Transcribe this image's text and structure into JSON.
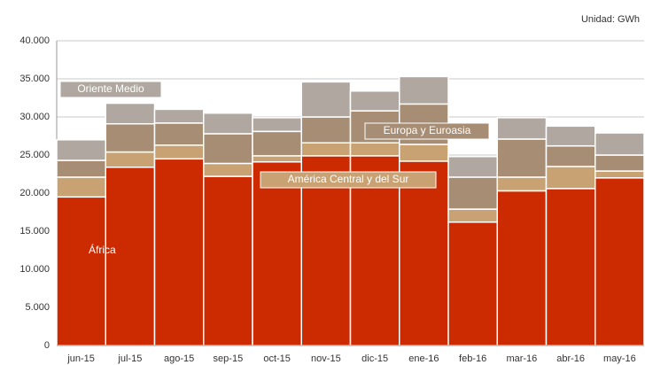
{
  "chart_data": {
    "type": "stacked_bar",
    "unit_note": "Unidad: GWh",
    "categories": [
      "jun-15",
      "jul-15",
      "ago-15",
      "sep-15",
      "oct-15",
      "nov-15",
      "dic-15",
      "ene-16",
      "feb-16",
      "mar-16",
      "abr-16",
      "may-16"
    ],
    "series": [
      {
        "name": "África",
        "color": "#cc2a00",
        "values": [
          19.5,
          23.4,
          24.5,
          22.2,
          24.1,
          24.9,
          24.9,
          24.2,
          16.2,
          20.3,
          20.6,
          22.0
        ]
      },
      {
        "name": "América Central y del Sur",
        "color": "#c9a273",
        "values": [
          2.6,
          2.0,
          1.8,
          1.7,
          0.8,
          1.7,
          1.7,
          2.2,
          1.7,
          1.8,
          2.9,
          0.9
        ]
      },
      {
        "name": "Europa y Euroasia",
        "color": "#a68d74",
        "values": [
          2.2,
          3.7,
          2.9,
          3.9,
          3.2,
          3.4,
          4.2,
          5.3,
          4.2,
          5.0,
          2.7,
          2.1
        ]
      },
      {
        "name": "Oriente Medio",
        "color": "#b0a8a0",
        "values": [
          2.7,
          2.7,
          1.8,
          2.7,
          1.8,
          4.6,
          2.6,
          3.6,
          2.7,
          2.8,
          2.6,
          2.9
        ]
      }
    ],
    "ylim": [
      0,
      40
    ],
    "yticks": [
      0,
      {
        "value": 5,
        "label": "5.000"
      },
      {
        "value": 10,
        "label": "10.000"
      },
      {
        "value": 15,
        "label": "15.000"
      },
      {
        "value": 20,
        "label": "20.000"
      },
      {
        "value": 25,
        "label": "25.000"
      },
      {
        "value": 30,
        "label": "30.000"
      },
      {
        "value": 35,
        "label": "35.000"
      },
      {
        "value": 40,
        "label": "40.000"
      }
    ],
    "grid": true
  }
}
